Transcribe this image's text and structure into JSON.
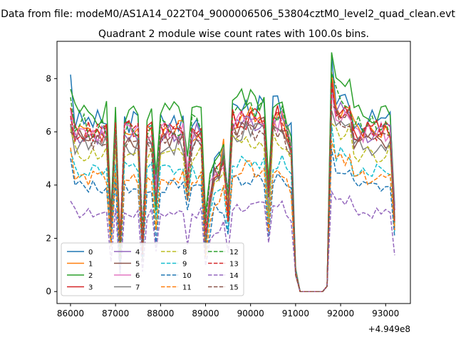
{
  "figure": {
    "suptitle": "Data from file: modeM0/AS1A14_022T04_9000006506_53804cztM0_level2_quad_clean.evt"
  },
  "chart_data": {
    "type": "line",
    "title": "Quadrant 2 module wise count rates with 100.0s bins.",
    "xlabel": "",
    "ylabel": "",
    "x_offset_label": "+4.949e8",
    "xlim": [
      85700,
      93550
    ],
    "ylim": [
      -0.45,
      9.4
    ],
    "xticks": [
      86000,
      87000,
      88000,
      89000,
      90000,
      91000,
      92000,
      93000
    ],
    "yticks": [
      0,
      2,
      4,
      6,
      8
    ],
    "grid": false,
    "legend": {
      "placement": "lower-left",
      "columns": 4
    },
    "x_start": 86000,
    "x_step": 100,
    "colors": [
      "#1f77b4",
      "#ff7f0e",
      "#2ca02c",
      "#d62728",
      "#9467bd",
      "#8c564b",
      "#e377c2",
      "#7f7f7f",
      "#bcbd22",
      "#17becf",
      "#1f77b4",
      "#ff7f0e",
      "#2ca02c",
      "#d62728",
      "#9467bd",
      "#8c564b"
    ],
    "series": [
      {
        "name": "0",
        "dashed": false,
        "base": 6.4,
        "first": 8.15
      },
      {
        "name": "1",
        "dashed": false,
        "base": 6.05,
        "first": 6.9
      },
      {
        "name": "2",
        "dashed": false,
        "base": 6.7,
        "first": 7.6
      },
      {
        "name": "3",
        "dashed": false,
        "base": 6.05,
        "first": 6.9
      },
      {
        "name": "4",
        "dashed": false,
        "base": 5.9,
        "first": 6.5
      },
      {
        "name": "5",
        "dashed": false,
        "base": 5.75,
        "first": 6.3
      },
      {
        "name": "6",
        "dashed": false,
        "base": 5.95,
        "first": 6.8
      },
      {
        "name": "7",
        "dashed": false,
        "base": 5.5,
        "first": 6.25
      },
      {
        "name": "8",
        "dashed": true,
        "base": 5.2,
        "first": 6.1
      },
      {
        "name": "9",
        "dashed": true,
        "base": 4.55,
        "first": 5.3
      },
      {
        "name": "10",
        "dashed": true,
        "base": 3.95,
        "first": 5.0
      },
      {
        "name": "11",
        "dashed": true,
        "base": 4.25,
        "first": 5.4
      },
      {
        "name": "12",
        "dashed": true,
        "base": 6.25,
        "first": 7.3
      },
      {
        "name": "13",
        "dashed": true,
        "base": 6.0,
        "first": 6.6
      },
      {
        "name": "14",
        "dashed": true,
        "base": 2.95,
        "first": 3.4
      },
      {
        "name": "15",
        "dashed": true,
        "base": 5.6,
        "first": 6.0
      }
    ]
  }
}
